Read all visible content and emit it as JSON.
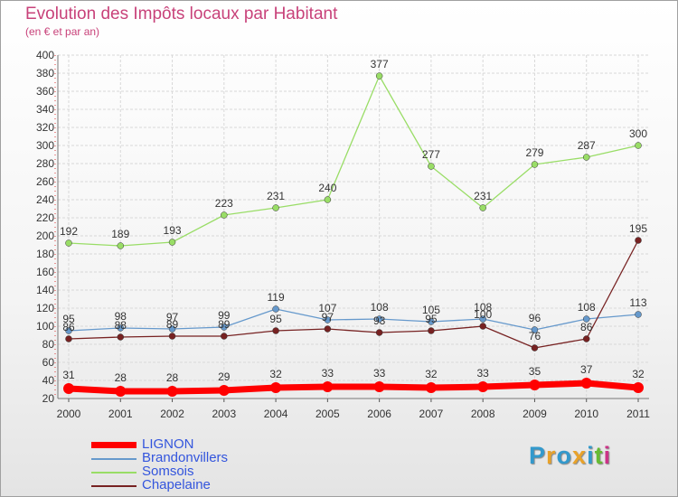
{
  "title": "Evolution des Impôts locaux par Habitant",
  "subtitle": "(en € et par an)",
  "chart_data": {
    "type": "line",
    "title": "Evolution des Impôts locaux par Habitant",
    "subtitle": "(en € et par an)",
    "xlabel": "",
    "ylabel": "",
    "ylim": [
      20,
      400
    ],
    "ytick_step": 20,
    "grid": true,
    "legend_position": "bottom-left",
    "categories": [
      "2000",
      "2001",
      "2002",
      "2003",
      "2004",
      "2005",
      "2006",
      "2007",
      "2008",
      "2009",
      "2010",
      "2011"
    ],
    "series": [
      {
        "name": "LIGNON",
        "color": "#ff0000",
        "values": [
          31,
          28,
          28,
          29,
          32,
          33,
          33,
          32,
          33,
          35,
          37,
          32
        ]
      },
      {
        "name": "Brandonvillers",
        "color": "#6699cc",
        "values": [
          95,
          98,
          97,
          99,
          119,
          107,
          108,
          105,
          108,
          96,
          108,
          113
        ]
      },
      {
        "name": "Somsois",
        "color": "#99dd66",
        "values": [
          192,
          189,
          193,
          223,
          231,
          240,
          377,
          277,
          231,
          279,
          287,
          300
        ]
      },
      {
        "name": "Chapelaine",
        "color": "#772222",
        "values": [
          86,
          88,
          89,
          89,
          95,
          97,
          93,
          95,
          100,
          76,
          86,
          195
        ]
      }
    ]
  },
  "logo": {
    "letters": [
      "P",
      "r",
      "o",
      "x",
      "i",
      "t",
      "i"
    ],
    "colors": [
      "#3399cc",
      "#e8a22a",
      "#3399cc",
      "#e8a22a",
      "#3399cc",
      "#66bb33",
      "#cc3388"
    ]
  }
}
